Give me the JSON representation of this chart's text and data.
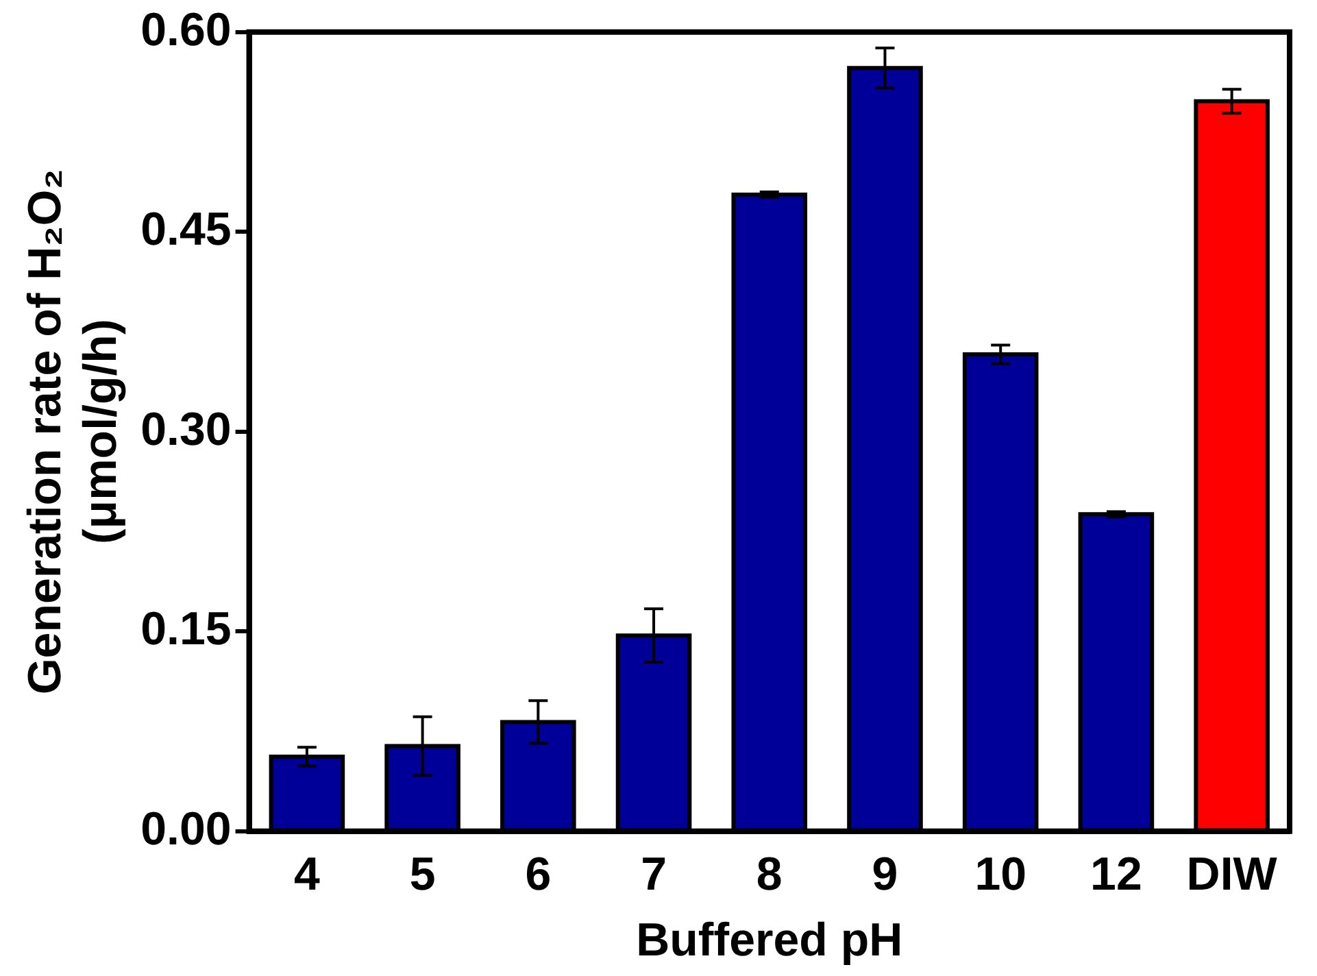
{
  "chart_data": {
    "type": "bar",
    "xlabel": "Buffered pH",
    "ylabel": "Generation rate of H₂O₂ (μmol/g/h)",
    "categories": [
      "4",
      "5",
      "6",
      "7",
      "8",
      "9",
      "10",
      "12",
      "DIW"
    ],
    "values": [
      0.056,
      0.064,
      0.082,
      0.147,
      0.478,
      0.573,
      0.358,
      0.238,
      0.548
    ],
    "errors": [
      0.007,
      0.022,
      0.016,
      0.02,
      0.002,
      0.015,
      0.007,
      0.002,
      0.009
    ],
    "colors": [
      "#000099",
      "#000099",
      "#000099",
      "#000099",
      "#000099",
      "#000099",
      "#000099",
      "#000099",
      "#ff0000"
    ],
    "ylim": [
      0,
      0.6
    ],
    "yticks": [
      {
        "value": 0,
        "label": "0.00"
      },
      {
        "value": 0.15,
        "label": "0.15"
      },
      {
        "value": 0.3,
        "label": "0.30"
      },
      {
        "value": 0.45,
        "label": "0.45"
      },
      {
        "value": 0.6,
        "label": "0.60"
      }
    ],
    "grid": false,
    "legend": false
  }
}
